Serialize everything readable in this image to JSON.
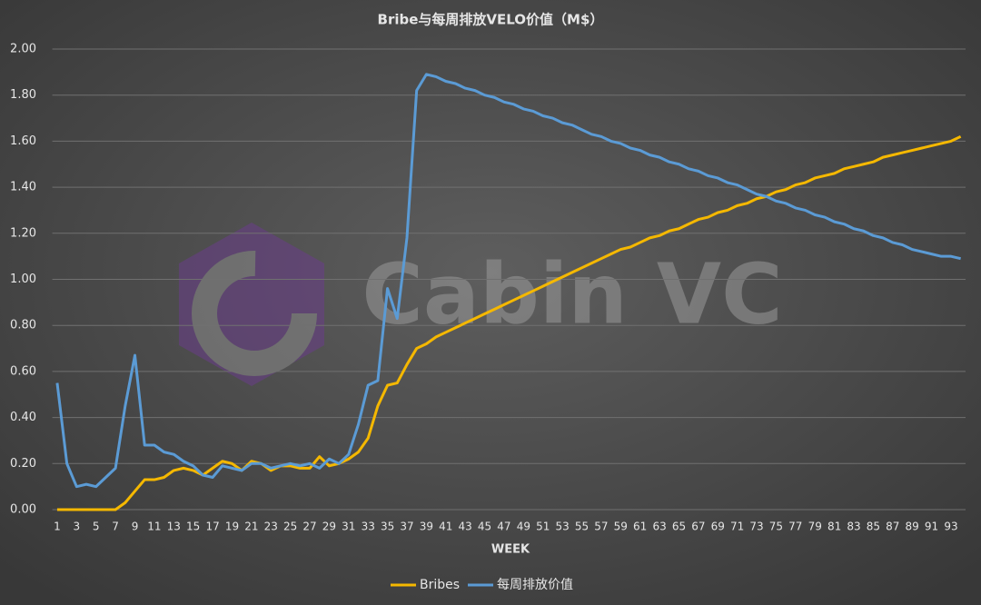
{
  "chart_data": {
    "type": "line",
    "title": "Bribe与每周排放VELO价值（M$）",
    "x_label": "WEEK",
    "watermark": "Cabin VC",
    "x": [
      1,
      2,
      3,
      4,
      5,
      6,
      7,
      8,
      9,
      10,
      11,
      12,
      13,
      14,
      15,
      16,
      17,
      18,
      19,
      20,
      21,
      22,
      23,
      24,
      25,
      26,
      27,
      28,
      29,
      30,
      31,
      32,
      33,
      34,
      35,
      36,
      37,
      38,
      39,
      40,
      41,
      42,
      43,
      44,
      45,
      46,
      47,
      48,
      49,
      50,
      51,
      52,
      53,
      54,
      55,
      56,
      57,
      58,
      59,
      60,
      61,
      62,
      63,
      64,
      65,
      66,
      67,
      68,
      69,
      70,
      71,
      72,
      73,
      74,
      75,
      76,
      77,
      78,
      79,
      80,
      81,
      82,
      83,
      84,
      85,
      86,
      87,
      88,
      89,
      90,
      91,
      92,
      93,
      94
    ],
    "xlim": [
      0.5,
      94.5
    ],
    "xticks": [
      1,
      3,
      5,
      7,
      9,
      11,
      13,
      15,
      17,
      19,
      21,
      23,
      25,
      27,
      29,
      31,
      33,
      35,
      37,
      39,
      41,
      43,
      45,
      47,
      49,
      51,
      53,
      55,
      57,
      59,
      61,
      63,
      65,
      67,
      69,
      71,
      73,
      75,
      77,
      79,
      81,
      83,
      85,
      87,
      89,
      91,
      93
    ],
    "ylim": [
      0,
      2
    ],
    "yticks": [
      {
        "value": 0,
        "label": "0.00"
      },
      {
        "value": 0.2,
        "label": "0.20"
      },
      {
        "value": 0.4,
        "label": "0.40"
      },
      {
        "value": 0.6,
        "label": "0.60"
      },
      {
        "value": 0.8,
        "label": "0.80"
      },
      {
        "value": 1.0,
        "label": "1.00"
      },
      {
        "value": 1.2,
        "label": "1.20"
      },
      {
        "value": 1.4,
        "label": "1.40"
      },
      {
        "value": 1.6,
        "label": "1.60"
      },
      {
        "value": 1.8,
        "label": "1.80"
      },
      {
        "value": 2.0,
        "label": "2.00"
      }
    ],
    "grid": true,
    "legend": "bottom",
    "series": [
      {
        "name": "Bribes",
        "color": "#f5b800",
        "values": [
          0,
          0,
          0,
          0,
          0,
          0,
          0,
          0.03,
          0.08,
          0.13,
          0.13,
          0.14,
          0.17,
          0.18,
          0.17,
          0.15,
          0.18,
          0.21,
          0.2,
          0.17,
          0.21,
          0.2,
          0.17,
          0.19,
          0.19,
          0.18,
          0.18,
          0.23,
          0.19,
          0.2,
          0.22,
          0.25,
          0.31,
          0.45,
          0.54,
          0.55,
          0.63,
          0.7,
          0.72,
          0.75,
          0.77,
          0.79,
          0.81,
          0.83,
          0.85,
          0.87,
          0.89,
          0.91,
          0.93,
          0.95,
          0.97,
          0.99,
          1.01,
          1.03,
          1.05,
          1.07,
          1.09,
          1.11,
          1.13,
          1.14,
          1.16,
          1.18,
          1.19,
          1.21,
          1.22,
          1.24,
          1.26,
          1.27,
          1.29,
          1.3,
          1.32,
          1.33,
          1.35,
          1.36,
          1.38,
          1.39,
          1.41,
          1.42,
          1.44,
          1.45,
          1.46,
          1.48,
          1.49,
          1.5,
          1.51,
          1.53,
          1.54,
          1.55,
          1.56,
          1.57,
          1.58,
          1.59,
          1.6,
          1.62
        ]
      },
      {
        "name": "每周排放价值",
        "color": "#5b9bd5",
        "values": [
          0.55,
          0.2,
          0.1,
          0.11,
          0.1,
          0.14,
          0.18,
          0.45,
          0.67,
          0.28,
          0.28,
          0.25,
          0.24,
          0.21,
          0.19,
          0.15,
          0.14,
          0.19,
          0.18,
          0.17,
          0.2,
          0.2,
          0.18,
          0.19,
          0.2,
          0.19,
          0.2,
          0.18,
          0.22,
          0.2,
          0.24,
          0.37,
          0.54,
          0.56,
          0.96,
          0.83,
          1.18,
          1.82,
          1.89,
          1.88,
          1.86,
          1.85,
          1.83,
          1.82,
          1.8,
          1.79,
          1.77,
          1.76,
          1.74,
          1.73,
          1.71,
          1.7,
          1.68,
          1.67,
          1.65,
          1.63,
          1.62,
          1.6,
          1.59,
          1.57,
          1.56,
          1.54,
          1.53,
          1.51,
          1.5,
          1.48,
          1.47,
          1.45,
          1.44,
          1.42,
          1.41,
          1.39,
          1.37,
          1.36,
          1.34,
          1.33,
          1.31,
          1.3,
          1.28,
          1.27,
          1.25,
          1.24,
          1.22,
          1.21,
          1.19,
          1.18,
          1.16,
          1.15,
          1.13,
          1.12,
          1.11,
          1.1,
          1.1,
          1.09
        ]
      }
    ]
  }
}
